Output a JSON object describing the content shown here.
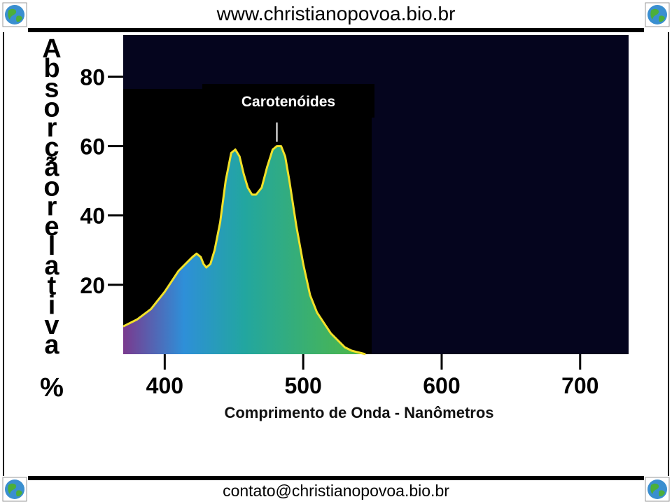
{
  "header": {
    "website": "www.christianopovoa.bio.br"
  },
  "footer": {
    "contact": "contato@christianopovoa.bio.br"
  },
  "icons": [
    "globe-icon",
    "globe-icon",
    "globe-icon",
    "globe-icon"
  ],
  "colors": {
    "plot_background": "#05051e",
    "curve_outline": "#f2e12a",
    "spectrum_violet": "#7a3a8e",
    "spectrum_blue": "#2e8fd8",
    "spectrum_cyan": "#22a6a0",
    "spectrum_green": "#4fb845",
    "annotation_line": "#ffffff"
  },
  "chart_data": {
    "type": "area",
    "title": "",
    "xlabel": "Comprimento de Onda - Nanômetros",
    "ylabel": "Absorção relativa",
    "ylabel_unit": "%",
    "xlim": [
      370,
      735
    ],
    "ylim": [
      0,
      92
    ],
    "xticks": [
      400,
      500,
      600,
      700
    ],
    "xtick_labels": [
      "400",
      "500",
      "600",
      "700"
    ],
    "yticks": [
      20,
      40,
      60,
      80
    ],
    "ytick_labels": [
      "20",
      "40",
      "60",
      "80"
    ],
    "grid": false,
    "legend": "none",
    "series": [
      {
        "name": "Carotenóides",
        "x": [
          370,
          380,
          390,
          400,
          405,
          410,
          415,
          420,
          423,
          426,
          428,
          430,
          433,
          436,
          440,
          444,
          448,
          451,
          454,
          457,
          460,
          463,
          466,
          470,
          474,
          478,
          481,
          484,
          487,
          490,
          495,
          500,
          505,
          510,
          515,
          520,
          525,
          530,
          535,
          540,
          545
        ],
        "y": [
          8,
          10,
          13,
          18,
          21,
          24,
          26,
          28,
          29,
          28,
          26,
          25,
          26,
          30,
          38,
          50,
          58,
          59,
          57,
          52,
          48,
          46,
          46,
          48,
          54,
          59,
          60,
          60,
          57,
          50,
          37,
          26,
          17,
          12,
          9,
          6,
          4,
          2,
          1,
          0.5,
          0
        ]
      }
    ],
    "annotations": [
      {
        "text": "Carotenóides",
        "x": 481,
        "y": 60
      }
    ]
  }
}
